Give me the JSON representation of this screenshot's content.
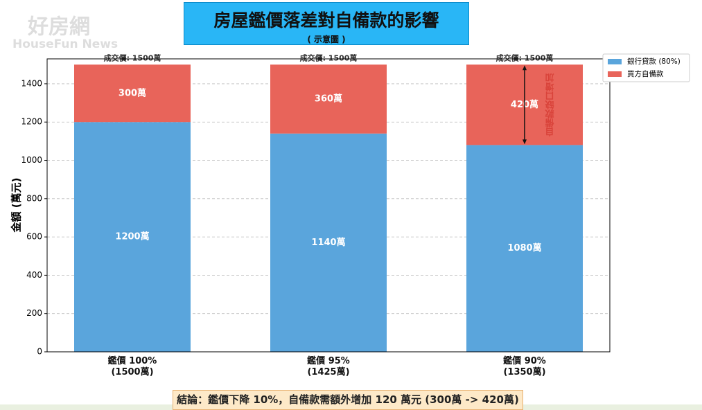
{
  "watermark": [
    "好房網",
    "HouseFun News"
  ],
  "chart_data": {
    "type": "stacked_bar",
    "title": "房屋鑑價落差對自備款的影響",
    "subtitle": "( 示意圖 )",
    "ylabel": "金額 (萬元)",
    "categories": [
      "鑑價 100%\n(1500萬)",
      "鑑價 95%\n(1425萬)",
      "鑑價 90%\n(1350萬)"
    ],
    "series": [
      {
        "name": "銀行貸款 (80%)",
        "color": "#5aa5dc",
        "values": [
          1200,
          1140,
          1080
        ],
        "value_labels": [
          "1200萬",
          "1140萬",
          "1080萬"
        ]
      },
      {
        "name": "買方自備款",
        "color": "#e8645a",
        "values": [
          300,
          360,
          420
        ],
        "value_labels": [
          "300萬",
          "360萬",
          "420萬"
        ]
      }
    ],
    "top_labels": [
      "成交價: 1500萬",
      "成交價: 1500萬",
      "成交價: 1500萬"
    ],
    "annotation": "自備款缺口增加",
    "conclusion": "結論：鑑價下降 10%，自備款需額外增加 120 萬元 (300萬 -> 420萬)",
    "ylim": [
      0,
      1530
    ],
    "yticks": [
      0,
      200,
      400,
      600,
      800,
      1000,
      1200,
      1400
    ],
    "grid": true,
    "legend": "upper right"
  }
}
